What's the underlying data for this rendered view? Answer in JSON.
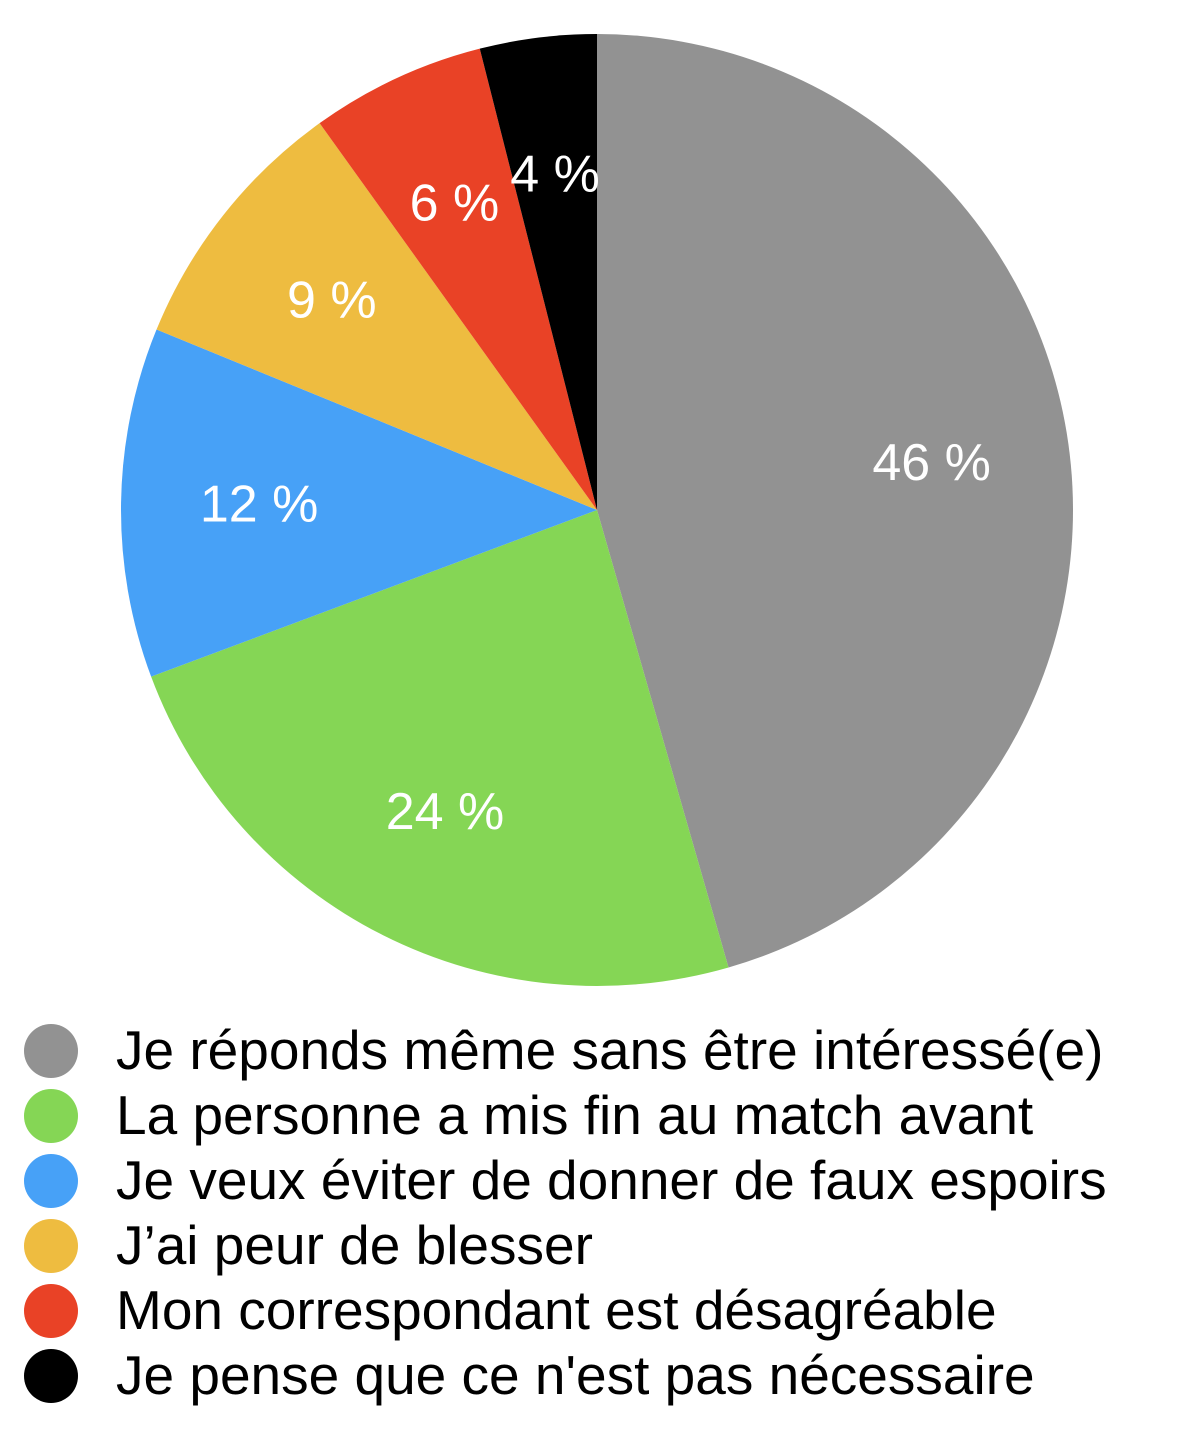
{
  "chart_data": {
    "type": "pie",
    "start_angle_deg": 0,
    "direction": "clockwise",
    "slices": [
      {
        "label": "Je réponds même sans être intéressé(e)",
        "value": 46,
        "value_label": "46 %",
        "color": "#929292"
      },
      {
        "label": "La personne a mis fin au match avant",
        "value": 24,
        "value_label": "24 %",
        "color": "#85D655"
      },
      {
        "label": "Je veux éviter de donner de faux espoirs",
        "value": 12,
        "value_label": "12 %",
        "color": "#47A1F7"
      },
      {
        "label": "J’ai peur de blesser",
        "value": 9,
        "value_label": "9 %",
        "color": "#EEBC40"
      },
      {
        "label": "Mon correspondant est désagréable",
        "value": 6,
        "value_label": "6 %",
        "color": "#E94226"
      },
      {
        "label": "Je pense que ce n'est pas nécessaire",
        "value": 4,
        "value_label": "4 %",
        "color": "#000000"
      }
    ],
    "legend_placement": "bottom"
  }
}
